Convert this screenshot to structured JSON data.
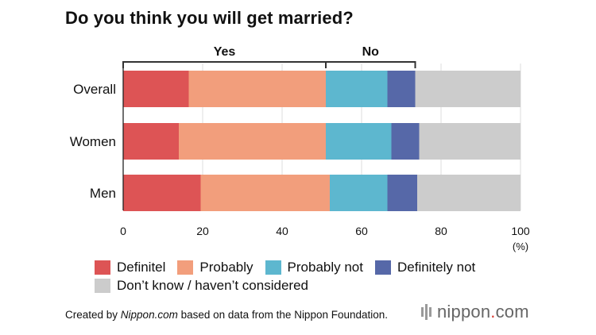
{
  "title": "Do you think you will get married?",
  "chart_data": {
    "type": "bar",
    "orientation": "horizontal",
    "stacked": true,
    "categories": [
      "Overall",
      "Women",
      "Men"
    ],
    "series": [
      {
        "name": "Definitel",
        "color": "#dd5455",
        "values": [
          16.5,
          14,
          19.5
        ]
      },
      {
        "name": "Probably",
        "color": "#f29e7c",
        "values": [
          34.5,
          37,
          32.5
        ]
      },
      {
        "name": "Probably not",
        "color": "#5db7cf",
        "values": [
          15.5,
          16.5,
          14.5
        ]
      },
      {
        "name": "Definitely not",
        "color": "#5668a8",
        "values": [
          7,
          7,
          7.5
        ]
      },
      {
        "name": "Don’t know / haven’t considered",
        "color": "#cccccc",
        "values": [
          26.5,
          25.5,
          26
        ]
      }
    ],
    "xlim": [
      0,
      100
    ],
    "xticks": [
      "0",
      "20",
      "40",
      "60",
      "80",
      "100"
    ],
    "xunit": "(%)",
    "grid": true,
    "groups": [
      {
        "label": "Yes",
        "from": 0,
        "to": 51
      },
      {
        "label": "No",
        "from": 51,
        "to": 73.5
      }
    ],
    "legend_position": "bottom"
  },
  "footer": {
    "prefix": "Created by ",
    "site": "Nippon.com",
    "suffix": " based on data from the Nippon Foundation."
  },
  "brand": {
    "name_a": "nippon",
    "dot": ".",
    "name_b": "com"
  }
}
